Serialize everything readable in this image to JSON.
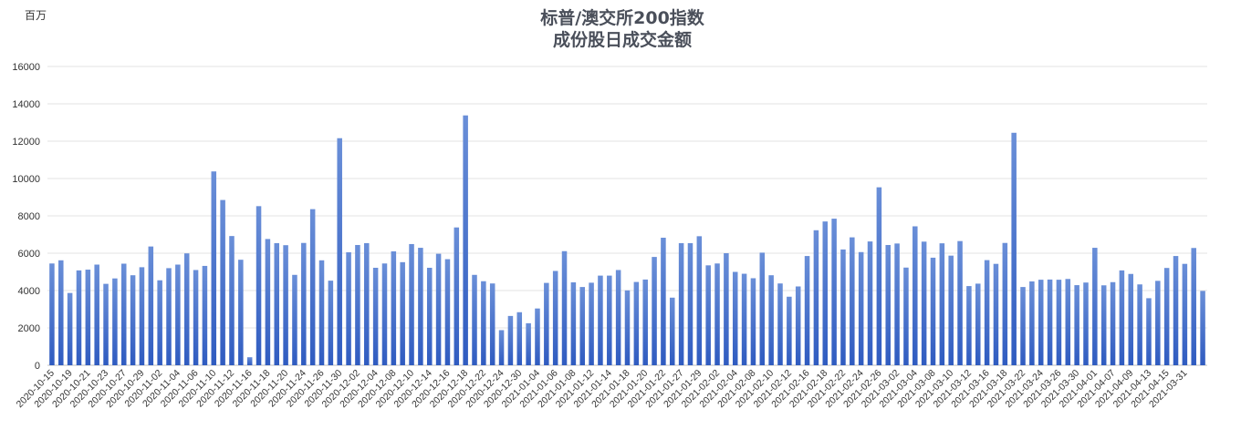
{
  "colors": {
    "bar_top": "#6a8fd8",
    "bar_bottom": "#2f5bc0",
    "grid": "#e3e3e3"
  },
  "chart_data": {
    "type": "bar",
    "title_lines": [
      "标普/澳交所200指数",
      "成份股日成交金额"
    ],
    "unit_label": "百万",
    "ylim": [
      0,
      16000
    ],
    "yticks": [
      0,
      2000,
      4000,
      6000,
      8000,
      10000,
      12000,
      14000,
      16000
    ],
    "grid": true,
    "legend": "none",
    "x_tick_labels": [
      "2020-10-15",
      "2020-10-19",
      "2020-10-21",
      "2020-10-23",
      "2020-10-27",
      "2020-10-29",
      "2020-11-02",
      "2020-11-04",
      "2020-11-06",
      "2020-11-10",
      "2020-11-12",
      "2020-11-16",
      "2020-11-18",
      "2020-11-20",
      "2020-11-24",
      "2020-11-26",
      "2020-11-30",
      "2020-12-02",
      "2020-12-04",
      "2020-12-08",
      "2020-12-10",
      "2020-12-14",
      "2020-12-16",
      "2020-12-18",
      "2020-12-22",
      "2020-12-24",
      "2020-12-30",
      "2021-01-04",
      "2021-01-06",
      "2021-01-08",
      "2021-01-12",
      "2021-01-14",
      "2021-01-18",
      "2021-01-20",
      "2021-01-22",
      "2021-01-27",
      "2021-01-29",
      "2021-02-02",
      "2021-02-04",
      "2021-02-08",
      "2021-02-10",
      "2021-02-12",
      "2021-02-16",
      "2021-02-18",
      "2021-02-22",
      "2021-02-24",
      "2021-02-26",
      "2021-03-02",
      "2021-03-04",
      "2021-03-08",
      "2021-03-10",
      "2021-03-12",
      "2021-03-16",
      "2021-03-18",
      "2021-03-22",
      "2021-03-24",
      "2021-03-26",
      "2021-03-30",
      "2021-04-01",
      "2021-04-07",
      "2021-04-09",
      "2021-04-13",
      "2021-04-15",
      "2021-03-31"
    ],
    "values": [
      5450,
      5620,
      3870,
      5080,
      5120,
      5390,
      4360,
      4650,
      5440,
      4820,
      5250,
      6360,
      4550,
      5200,
      5390,
      5990,
      5100,
      5320,
      10380,
      8850,
      6920,
      5650,
      430,
      8520,
      6760,
      6540,
      6430,
      4840,
      6550,
      8360,
      5620,
      4530,
      12160,
      6050,
      6440,
      6540,
      5220,
      5450,
      6100,
      5520,
      6490,
      6290,
      5220,
      5970,
      5680,
      7380,
      13380,
      4840,
      4500,
      4380,
      1880,
      2640,
      2840,
      2250,
      3040,
      4410,
      5050,
      6110,
      4440,
      4190,
      4420,
      4800,
      4800,
      5100,
      4010,
      4460,
      4590,
      5800,
      6830,
      3620,
      6540,
      6540,
      6910,
      5350,
      5450,
      6000,
      5000,
      4900,
      4660,
      6030,
      4820,
      4380,
      3670,
      4220,
      5850,
      7230,
      7700,
      7850,
      6200,
      6850,
      6060,
      6630,
      9530,
      6440,
      6520,
      5230,
      7440,
      6620,
      5760,
      6530,
      5870,
      6650,
      4240,
      4370,
      5630,
      5430,
      6550,
      12450,
      4190,
      4490,
      4580,
      4590,
      4580,
      4620,
      4290,
      4430,
      6290,
      4280,
      4450,
      5080,
      4890,
      4330,
      3590,
      4520,
      5210,
      5850,
      5430,
      6280,
      3980
    ]
  }
}
